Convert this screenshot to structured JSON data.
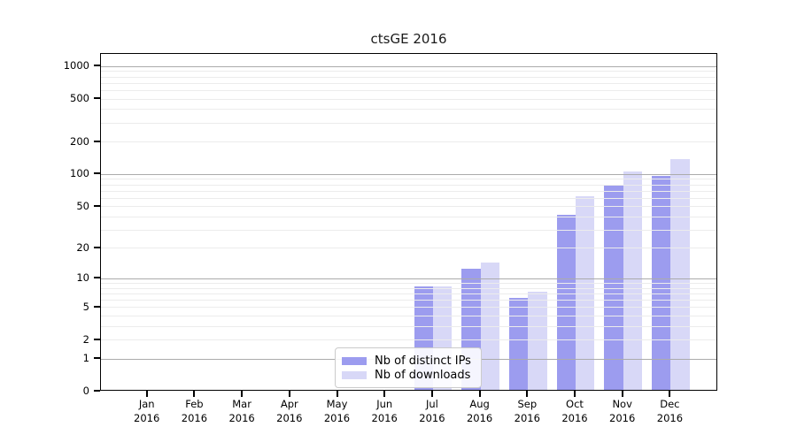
{
  "chart_data": {
    "type": "bar",
    "title": "ctsGE 2016",
    "x": [
      "Jan",
      "Feb",
      "Mar",
      "Apr",
      "May",
      "Jun",
      "Jul",
      "Aug",
      "Sep",
      "Oct",
      "Nov",
      "Dec"
    ],
    "x_year": "2016",
    "series": [
      {
        "name": "Nb of distinct IPs",
        "color": "#9c9cef",
        "values": [
          0,
          0,
          0,
          0,
          0,
          0,
          8,
          12,
          6,
          40,
          75,
          94
        ]
      },
      {
        "name": "Nb of downloads",
        "color": "#d8d8f7",
        "values": [
          0,
          0,
          0,
          0,
          0,
          0,
          8,
          14,
          7,
          60,
          103,
          134
        ]
      }
    ],
    "yscale": "log10(1+x)",
    "yticks": [
      0,
      1,
      2,
      5,
      10,
      20,
      50,
      100,
      200,
      500,
      1000
    ],
    "ylim": [
      0,
      1300
    ],
    "grid": {
      "major_lines": [
        1,
        10,
        100,
        1000
      ],
      "minor_lines": [
        2,
        3,
        4,
        5,
        6,
        7,
        8,
        9,
        20,
        30,
        40,
        50,
        60,
        70,
        80,
        90,
        200,
        300,
        400,
        500,
        600,
        700,
        800,
        900
      ]
    },
    "legend_position": "bottom-center",
    "colors": {
      "background": "#ffffff",
      "axis": "#000000",
      "major_grid": "#ababab",
      "minor_grid": "#ececec",
      "legend_border": "#cbcbcb"
    }
  }
}
